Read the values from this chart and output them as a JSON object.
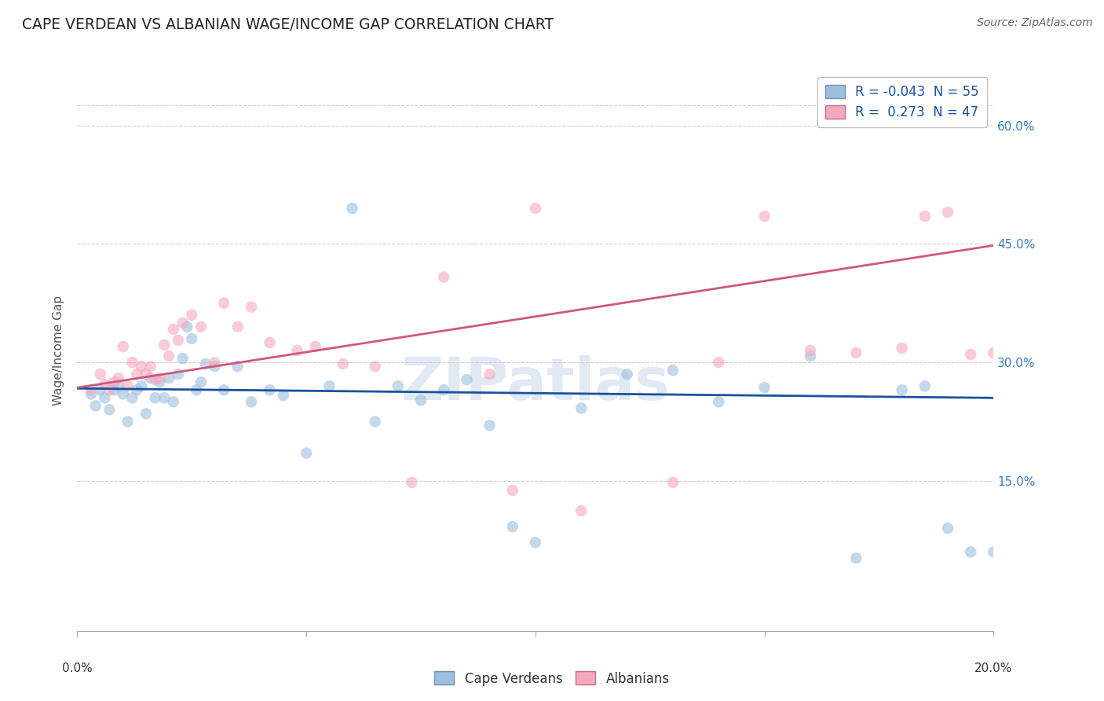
{
  "title": "CAPE VERDEAN VS ALBANIAN WAGE/INCOME GAP CORRELATION CHART",
  "source": "Source: ZipAtlas.com",
  "ylabel": "Wage/Income Gap",
  "ytick_labels": [
    "15.0%",
    "30.0%",
    "45.0%",
    "60.0%"
  ],
  "ytick_values": [
    0.15,
    0.3,
    0.45,
    0.6
  ],
  "xlim": [
    0.0,
    0.2
  ],
  "ylim": [
    -0.04,
    0.67
  ],
  "top_gridline_y": 0.625,
  "watermark": "ZIPatlas",
  "legend_line1": "R = -0.043  N = 55",
  "legend_line2": "R =  0.273  N = 47",
  "cape_verdean_color": "#9bbfdd",
  "albanian_color": "#f5a8be",
  "blue_line_color": "#1a52a0",
  "pink_line_color": "#d05878",
  "grid_color": "#cccccc",
  "background_color": "#ffffff",
  "cape_verdean_x": [
    0.003,
    0.004,
    0.005,
    0.006,
    0.007,
    0.008,
    0.009,
    0.01,
    0.011,
    0.012,
    0.013,
    0.014,
    0.015,
    0.016,
    0.017,
    0.018,
    0.019,
    0.02,
    0.021,
    0.022,
    0.023,
    0.024,
    0.025,
    0.026,
    0.027,
    0.028,
    0.03,
    0.032,
    0.035,
    0.038,
    0.042,
    0.045,
    0.05,
    0.055,
    0.06,
    0.065,
    0.07,
    0.075,
    0.08,
    0.085,
    0.09,
    0.095,
    0.1,
    0.11,
    0.12,
    0.13,
    0.14,
    0.15,
    0.16,
    0.17,
    0.18,
    0.185,
    0.19,
    0.195,
    0.2
  ],
  "cape_verdean_y": [
    0.26,
    0.245,
    0.265,
    0.255,
    0.24,
    0.265,
    0.27,
    0.26,
    0.225,
    0.255,
    0.265,
    0.27,
    0.235,
    0.28,
    0.255,
    0.275,
    0.255,
    0.28,
    0.25,
    0.285,
    0.305,
    0.345,
    0.33,
    0.265,
    0.275,
    0.298,
    0.295,
    0.265,
    0.295,
    0.25,
    0.265,
    0.258,
    0.185,
    0.27,
    0.495,
    0.225,
    0.27,
    0.252,
    0.265,
    0.278,
    0.22,
    0.092,
    0.072,
    0.242,
    0.285,
    0.29,
    0.25,
    0.268,
    0.308,
    0.052,
    0.265,
    0.27,
    0.09,
    0.06,
    0.06
  ],
  "albanian_x": [
    0.003,
    0.005,
    0.006,
    0.007,
    0.008,
    0.009,
    0.01,
    0.011,
    0.012,
    0.013,
    0.014,
    0.015,
    0.016,
    0.017,
    0.018,
    0.019,
    0.02,
    0.021,
    0.022,
    0.023,
    0.025,
    0.027,
    0.03,
    0.032,
    0.035,
    0.038,
    0.042,
    0.048,
    0.052,
    0.058,
    0.065,
    0.073,
    0.08,
    0.09,
    0.095,
    0.1,
    0.11,
    0.13,
    0.14,
    0.15,
    0.16,
    0.17,
    0.18,
    0.185,
    0.19,
    0.195,
    0.2
  ],
  "albanian_y": [
    0.265,
    0.285,
    0.272,
    0.265,
    0.275,
    0.28,
    0.32,
    0.27,
    0.3,
    0.285,
    0.295,
    0.285,
    0.295,
    0.278,
    0.28,
    0.322,
    0.308,
    0.342,
    0.328,
    0.35,
    0.36,
    0.345,
    0.3,
    0.375,
    0.345,
    0.37,
    0.325,
    0.315,
    0.32,
    0.298,
    0.295,
    0.148,
    0.408,
    0.285,
    0.138,
    0.495,
    0.112,
    0.148,
    0.3,
    0.485,
    0.315,
    0.312,
    0.318,
    0.485,
    0.49,
    0.31,
    0.312
  ],
  "blue_line_x": [
    0.0,
    0.2
  ],
  "blue_line_y": [
    0.267,
    0.255
  ],
  "pink_line_x": [
    0.0,
    0.2
  ],
  "pink_line_y": [
    0.268,
    0.448
  ],
  "marker_size": 110,
  "marker_alpha": 0.6,
  "line_width": 2.0,
  "title_fontsize": 13.5,
  "axis_label_fontsize": 11,
  "tick_fontsize": 11,
  "legend_fontsize": 12,
  "source_fontsize": 10
}
